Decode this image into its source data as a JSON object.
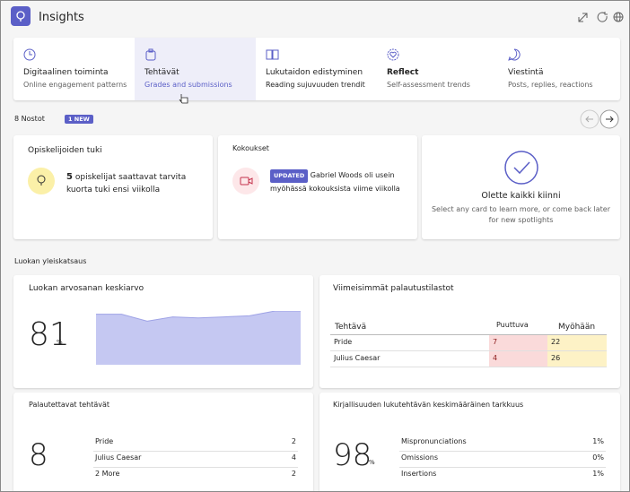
{
  "header": {
    "title": "Insights"
  },
  "tabs": [
    {
      "title": "Digitaalinen toiminta",
      "subtitle": "Online engagement patterns"
    },
    {
      "title": "Tehtävät",
      "subtitle": "Grades and submissions"
    },
    {
      "title": "Lukutaidon edistyminen",
      "subtitle": "Reading sujuvuuden trendit"
    },
    {
      "title": "Reflect",
      "subtitle": "Self-assessment trends"
    },
    {
      "title": "Viestintä",
      "subtitle": "Posts, replies, reactions"
    }
  ],
  "spotlights": {
    "count": "8 Nostot",
    "badge": "1 NEW",
    "cards": [
      {
        "title": "Opiskelijoiden tuki",
        "count": "5",
        "text": "opiskelijat saattavat tarvita kuorta tuki ensi viikolla"
      },
      {
        "title": "Kokoukset",
        "badge": "UPDATED",
        "text": "Gabriel Woods oli usein myöhässä kokouksista viime viikolla"
      },
      {
        "title": "Olette kaikki kiinni",
        "text": "Select any card to learn more, or come back later for new spotlights"
      }
    ]
  },
  "overview": {
    "title": "Luokan yleiskatsaus",
    "grade": {
      "title": "Luokan arvosanan keskiarvo",
      "value": "81",
      "unit": "%",
      "trend": {
        "values": [
          94,
          94,
          81,
          89,
          87,
          89,
          91,
          100,
          100
        ],
        "ylim": [
          0,
          100
        ]
      }
    },
    "submissions": {
      "title": "Viimeisimmät palautustilastot",
      "columns": [
        "Tehtävä",
        "Puuttuva",
        "Myöhään"
      ],
      "rows": [
        [
          "Pride",
          "7",
          "22"
        ],
        [
          "Julius Caesar",
          "4",
          "26"
        ]
      ]
    },
    "due": {
      "title": "Palautettavat tehtävät",
      "value": "8",
      "rows": [
        [
          "Pride",
          "2"
        ],
        [
          "Julius Caesar",
          "4"
        ],
        [
          "2 More",
          "2"
        ]
      ]
    },
    "accuracy": {
      "title": "Kirjallisuuden lukutehtävän keskimääräinen tarkkuus",
      "value": "98",
      "unit": "%",
      "rows": [
        [
          "Mispronunciations",
          "1%"
        ],
        [
          "Omissions",
          "0%"
        ],
        [
          "Insertions",
          "1%"
        ]
      ]
    }
  }
}
